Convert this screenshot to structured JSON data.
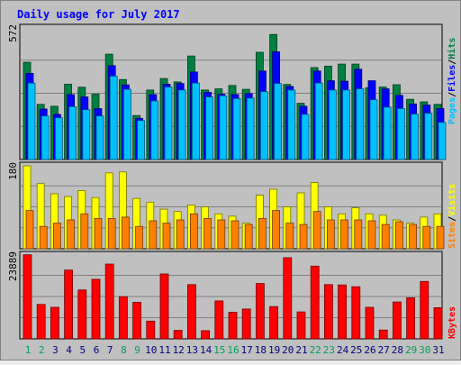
{
  "chart_data": {
    "type": "bar",
    "title": "Daily usage for July 2017",
    "categories": [
      "1",
      "2",
      "3",
      "4",
      "5",
      "6",
      "7",
      "8",
      "9",
      "10",
      "11",
      "12",
      "13",
      "14",
      "15",
      "16",
      "17",
      "18",
      "19",
      "20",
      "21",
      "22",
      "23",
      "24",
      "25",
      "26",
      "27",
      "28",
      "29",
      "30",
      "31"
    ],
    "weekend_days": [
      "1",
      "2",
      "8",
      "9",
      "15",
      "16",
      "22",
      "23",
      "29",
      "30"
    ],
    "panels": [
      {
        "id": "top",
        "max_label": "572",
        "ylim": [
          0,
          572
        ],
        "series": [
          {
            "name": "Hits",
            "color": "#008040",
            "values": [
              420,
              238,
              230,
              325,
              312,
              282,
              455,
              345,
              190,
              300,
              350,
              335,
              447,
              300,
              305,
              320,
              303,
              463,
              540,
              324,
              243,
              397,
              403,
              412,
              412,
              310,
              313,
              323,
              260,
              249,
              238
            ]
          },
          {
            "name": "Files",
            "color": "#0000ff",
            "values": [
              372,
              218,
              195,
              280,
              270,
              220,
              405,
              322,
              178,
              280,
              325,
              328,
              378,
              290,
              282,
              280,
              285,
              382,
              465,
              315,
              230,
              382,
              340,
              338,
              390,
              340,
              305,
              277,
              240,
              235,
              220
            ]
          },
          {
            "name": "Pages",
            "color": "#00c0ff",
            "values": [
              330,
              188,
              180,
              228,
              215,
              188,
              360,
              303,
              168,
              253,
              313,
              300,
              330,
              270,
              275,
              263,
              265,
              293,
              328,
              300,
              195,
              330,
              300,
              300,
              305,
              258,
              226,
              220,
              196,
              200,
              160
            ]
          }
        ]
      },
      {
        "id": "middle",
        "max_label": "180",
        "ylim": [
          0,
          180
        ],
        "series": [
          {
            "name": "Visits",
            "color": "#ffff00",
            "values": [
              178,
              140,
              118,
              112,
              125,
              110,
              163,
              165,
              108,
              100,
              85,
              80,
              94,
              90,
              75,
              70,
              55,
              115,
              128,
              90,
              120,
              142,
              90,
              75,
              88,
              75,
              72,
              62,
              55,
              68,
              75
            ]
          },
          {
            "name": "Sites",
            "color": "#ff8000",
            "values": [
              82,
              48,
              55,
              62,
              75,
              65,
              65,
              68,
              48,
              60,
              55,
              62,
              75,
              65,
              62,
              60,
              52,
              65,
              82,
              55,
              52,
              80,
              62,
              62,
              62,
              60,
              52,
              58,
              52,
              48,
              48
            ]
          }
        ]
      },
      {
        "id": "bottom",
        "max_label": "23889",
        "ylim": [
          0,
          23889
        ],
        "series": [
          {
            "name": "KBytes",
            "color": "#ff0000",
            "values": [
              23700,
              9700,
              8900,
              19400,
              13800,
              16800,
              21100,
              11900,
              10300,
              5000,
              18300,
              2400,
              15300,
              2300,
              10700,
              7500,
              8400,
              15600,
              9100,
              22900,
              7600,
              20500,
              15300,
              15200,
              14700,
              8900,
              2500,
              10400,
              11600,
              16200,
              8800
            ]
          }
        ]
      }
    ],
    "legend_top": [
      "Pages",
      "Files",
      "Hits"
    ],
    "legend_middle": [
      "Sites",
      "Visits"
    ],
    "legend_bottom": [
      "KBytes"
    ],
    "legend_separator": "/",
    "colors": {
      "title": "#0000ff",
      "frame": "#c0c0c0",
      "panel_bg": "#c0c0c0",
      "weekday_label": "#000080",
      "weekend_label": "#00a060",
      "gridline": "#808080"
    }
  }
}
